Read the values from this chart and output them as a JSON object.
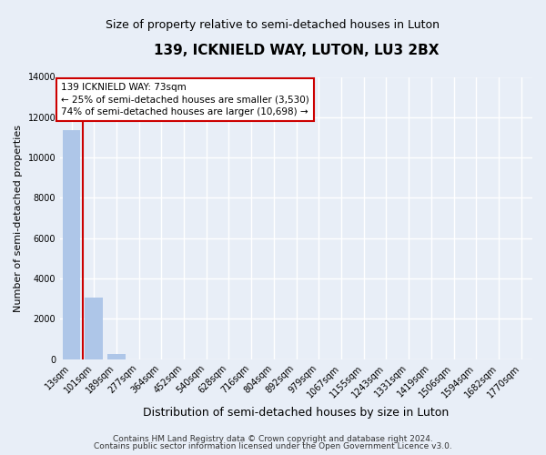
{
  "title": "139, ICKNIELD WAY, LUTON, LU3 2BX",
  "subtitle": "Size of property relative to semi-detached houses in Luton",
  "xlabel": "Distribution of semi-detached houses by size in Luton",
  "ylabel": "Number of semi-detached properties",
  "bar_color": "#aec6e8",
  "vline_color": "#cc0000",
  "annotation_box_edgecolor": "#cc0000",
  "background_color": "#e8eef7",
  "grid_color": "#ffffff",
  "categories": [
    "13sqm",
    "101sqm",
    "189sqm",
    "277sqm",
    "364sqm",
    "452sqm",
    "540sqm",
    "628sqm",
    "716sqm",
    "804sqm",
    "892sqm",
    "979sqm",
    "1067sqm",
    "1155sqm",
    "1243sqm",
    "1331sqm",
    "1419sqm",
    "1506sqm",
    "1594sqm",
    "1682sqm",
    "1770sqm"
  ],
  "values": [
    11350,
    3030,
    230,
    0,
    0,
    0,
    0,
    0,
    0,
    0,
    0,
    0,
    0,
    0,
    0,
    0,
    0,
    0,
    0,
    0,
    0
  ],
  "property_label": "139 ICKNIELD WAY: 73sqm",
  "pct_smaller": 25,
  "n_smaller": 3530,
  "pct_larger": 74,
  "n_larger": 10698,
  "vline_x": 0.5,
  "ylim": [
    0,
    14000
  ],
  "yticks": [
    0,
    2000,
    4000,
    6000,
    8000,
    10000,
    12000,
    14000
  ],
  "footnote1": "Contains HM Land Registry data © Crown copyright and database right 2024.",
  "footnote2": "Contains public sector information licensed under the Open Government Licence v3.0.",
  "title_fontsize": 11,
  "subtitle_fontsize": 9,
  "xlabel_fontsize": 9,
  "ylabel_fontsize": 8,
  "tick_fontsize": 7,
  "annot_fontsize": 7.5,
  "footnote_fontsize": 6.5
}
